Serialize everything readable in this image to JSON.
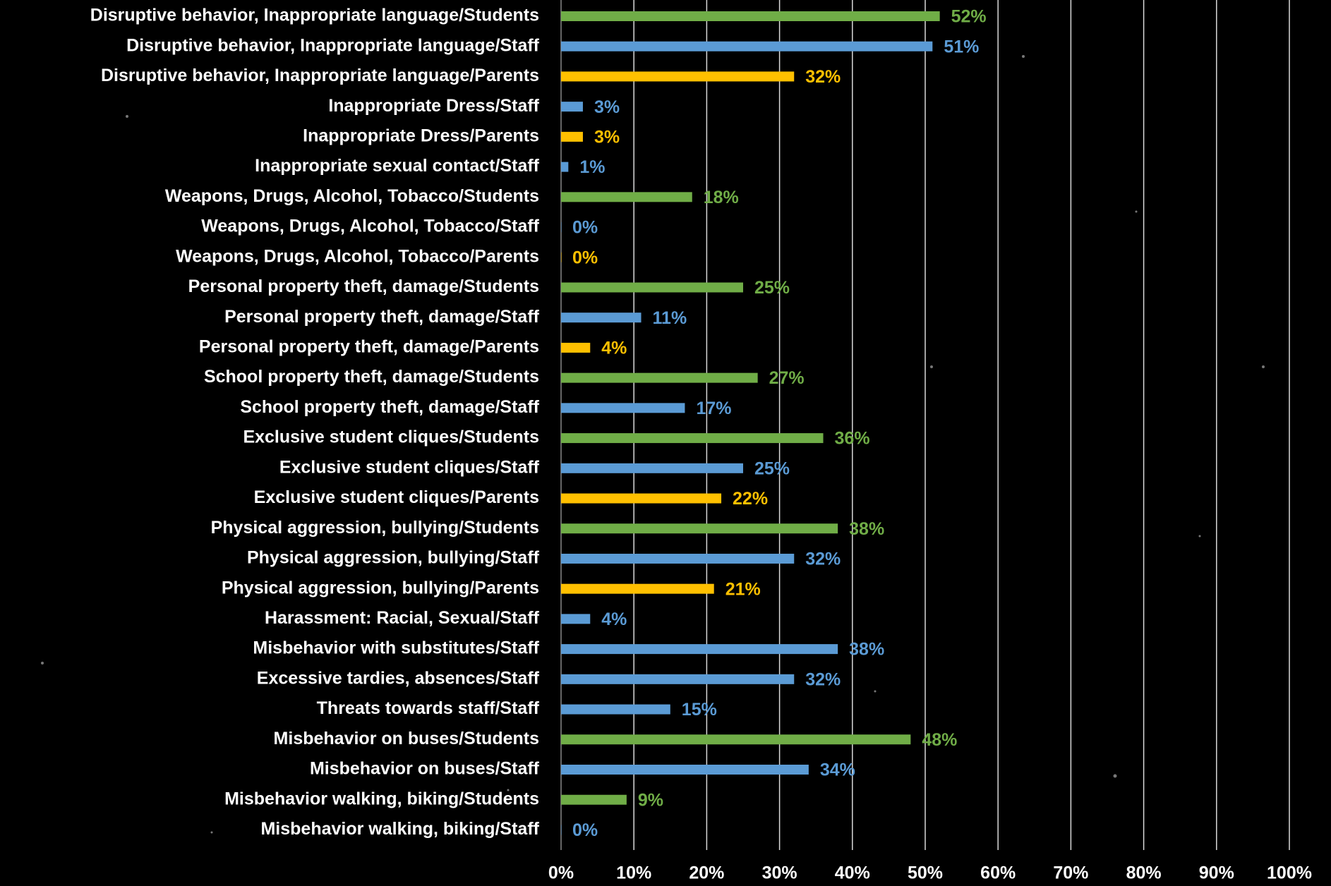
{
  "chart_data": {
    "type": "bar",
    "orientation": "horizontal",
    "categories": [
      "Disruptive behavior, Inappropriate language/Students",
      "Disruptive behavior, Inappropriate language/Staff",
      "Disruptive behavior, Inappropriate language/Parents",
      "Inappropriate Dress/Staff",
      "Inappropriate Dress/Parents",
      "Inappropriate sexual contact/Staff",
      "Weapons, Drugs, Alcohol, Tobacco/Students",
      "Weapons, Drugs, Alcohol, Tobacco/Staff",
      "Weapons, Drugs, Alcohol, Tobacco/Parents",
      "Personal property theft, damage/Students",
      "Personal property theft, damage/Staff",
      "Personal property theft, damage/Parents",
      "School property theft, damage/Students",
      "School property theft, damage/Staff",
      "Exclusive student cliques/Students",
      "Exclusive student cliques/Staff",
      "Exclusive student cliques/Parents",
      "Physical aggression, bullying/Students",
      "Physical aggression, bullying/Staff",
      "Physical aggression, bullying/Parents",
      "Harassment: Racial, Sexual/Staff",
      "Misbehavior with substitutes/Staff",
      "Excessive tardies, absences/Staff",
      "Threats towards staff/Staff",
      "Misbehavior on buses/Students",
      "Misbehavior on buses/Staff",
      "Misbehavior walking, biking/Students",
      "Misbehavior walking, biking/Staff"
    ],
    "values": [
      52,
      51,
      32,
      3,
      3,
      1,
      18,
      0,
      0,
      25,
      11,
      4,
      27,
      17,
      36,
      25,
      22,
      38,
      32,
      21,
      4,
      38,
      32,
      15,
      48,
      34,
      9,
      0
    ],
    "value_labels": [
      "52%",
      "51%",
      "32%",
      "3%",
      "3%",
      "1%",
      "18%",
      "0%",
      "0%",
      "25%",
      "11%",
      "4%",
      "27%",
      "17%",
      "36%",
      "25%",
      "22%",
      "38%",
      "32%",
      "21%",
      "4%",
      "38%",
      "32%",
      "15%",
      "48%",
      "34%",
      "9%",
      "0%"
    ],
    "colors": [
      "#70ad47",
      "#5b9bd5",
      "#ffc000",
      "#5b9bd5",
      "#ffc000",
      "#5b9bd5",
      "#70ad47",
      "#5b9bd5",
      "#ffc000",
      "#70ad47",
      "#5b9bd5",
      "#ffc000",
      "#70ad47",
      "#5b9bd5",
      "#70ad47",
      "#5b9bd5",
      "#ffc000",
      "#70ad47",
      "#5b9bd5",
      "#ffc000",
      "#5b9bd5",
      "#5b9bd5",
      "#5b9bd5",
      "#5b9bd5",
      "#70ad47",
      "#5b9bd5",
      "#70ad47",
      "#5b9bd5"
    ],
    "xlim": [
      0,
      100
    ],
    "xticks": [
      {
        "value": 0,
        "label": "0%"
      },
      {
        "value": 10,
        "label": "10%"
      },
      {
        "value": 20,
        "label": "20%"
      },
      {
        "value": 30,
        "label": "30%"
      },
      {
        "value": 40,
        "label": "40%"
      },
      {
        "value": 50,
        "label": "50%"
      },
      {
        "value": 60,
        "label": "60%"
      },
      {
        "value": 70,
        "label": "70%"
      },
      {
        "value": 80,
        "label": "80%"
      },
      {
        "value": 90,
        "label": "90%"
      },
      {
        "value": 100,
        "label": "100%"
      }
    ],
    "grid": true
  }
}
